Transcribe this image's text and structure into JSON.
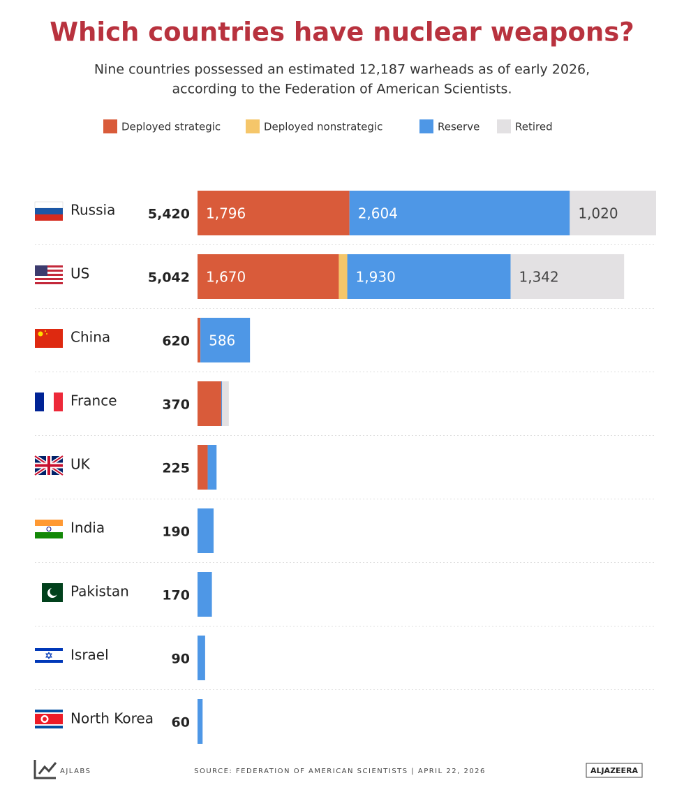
{
  "chart_data": {
    "type": "stacked-bar",
    "title": "Which countries have nuclear weapons?",
    "subtitle": [
      "Nine countries possessed an estimated 12,187 warheads as of early 2026,",
      "according to the Federation of American Scientists."
    ],
    "categories": [
      "Russia",
      "US",
      "China",
      "France",
      "UK",
      "India",
      "Pakistan",
      "Israel",
      "North Korea"
    ],
    "total_labels": [
      "5,420",
      "5,042",
      "620",
      "370",
      "225",
      "190",
      "170",
      "90",
      "60"
    ],
    "series": [
      {
        "name": "Deployed strategic",
        "color": "#d95b3a",
        "values": [
          1796,
          1670,
          34,
          280,
          120,
          0,
          0,
          0,
          0
        ],
        "value_labels": [
          "1,796",
          "1,670",
          null,
          null,
          null,
          null,
          null,
          null,
          null
        ]
      },
      {
        "name": "Deployed nonstrategic",
        "color": "#f5c66a",
        "values": [
          0,
          100,
          0,
          0,
          0,
          0,
          0,
          0,
          0
        ],
        "value_labels": [
          null,
          null,
          null,
          null,
          null,
          null,
          null,
          null,
          null
        ]
      },
      {
        "name": "Reserve",
        "color": "#4e97e6",
        "values": [
          2604,
          1930,
          586,
          10,
          105,
          190,
          170,
          90,
          60
        ],
        "value_labels": [
          "2,604",
          "1,930",
          "586",
          null,
          null,
          null,
          null,
          null,
          null
        ]
      },
      {
        "name": "Retired",
        "color": "#e3e1e3",
        "values": [
          1020,
          1342,
          0,
          80,
          0,
          0,
          0,
          0,
          0
        ],
        "value_labels": [
          "1,020",
          "1,342",
          null,
          null,
          null,
          null,
          null,
          null,
          null
        ]
      }
    ],
    "xlim": [
      0,
      5420
    ],
    "source": "SOURCE:  FEDERATION OF AMERICAN SCIENTISTS   |   APRIL 22, 2026",
    "credit": "AJLABS",
    "brand": "ALJAZEERA"
  }
}
